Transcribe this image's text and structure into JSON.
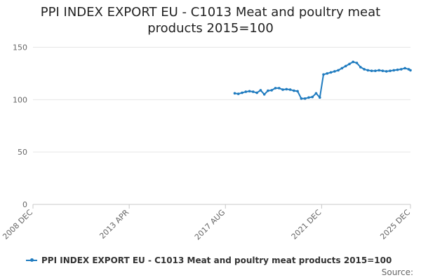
{
  "chart_data": {
    "type": "line",
    "title": "PPI INDEX EXPORT EU - C1013 Meat and poultry meat products 2015=100",
    "xlabel": "",
    "ylabel": "",
    "x_tick_labels": [
      "2008 DEC",
      "2013 APR",
      "2017 AUG",
      "2021 DEC",
      "2025 DEC"
    ],
    "y_tick_labels": [
      "0",
      "50",
      "100",
      "150"
    ],
    "ylim": [
      0,
      160
    ],
    "grid": "horizontal",
    "legend_position": "bottom",
    "series": [
      {
        "name": "PPI INDEX EXPORT EU - C1013 Meat and poultry meat products 2015=100",
        "color": "#1f7bbf",
        "x": [
          "2018-01",
          "2018-03",
          "2018-05",
          "2018-07",
          "2018-09",
          "2018-11",
          "2019-01",
          "2019-03",
          "2019-05",
          "2019-07",
          "2019-09",
          "2019-11",
          "2020-01",
          "2020-03",
          "2020-05",
          "2020-07",
          "2020-09",
          "2020-11",
          "2021-01",
          "2021-03",
          "2021-05",
          "2021-07",
          "2021-09",
          "2021-11",
          "2022-01",
          "2022-03",
          "2022-05",
          "2022-07",
          "2022-09",
          "2022-11",
          "2023-01",
          "2023-03",
          "2023-05",
          "2023-07",
          "2023-09",
          "2023-11",
          "2024-01",
          "2024-03",
          "2024-05",
          "2024-07",
          "2024-09",
          "2024-11",
          "2025-01",
          "2025-03",
          "2025-05",
          "2025-07",
          "2025-09",
          "2025-11",
          "2025-12"
        ],
        "values": [
          106,
          105.5,
          106.5,
          107.5,
          108,
          107.5,
          106.5,
          109,
          105,
          108.5,
          109,
          111,
          111,
          109.5,
          110,
          109.5,
          108.5,
          108,
          101,
          101,
          102,
          102.5,
          106,
          102,
          124,
          125,
          126,
          127,
          128,
          130,
          132,
          134,
          136,
          135,
          131,
          129,
          128,
          127.5,
          127.5,
          128,
          127.5,
          127,
          127.5,
          128,
          128.5,
          129,
          130,
          129,
          128
        ]
      }
    ]
  },
  "source_label": "Source:"
}
